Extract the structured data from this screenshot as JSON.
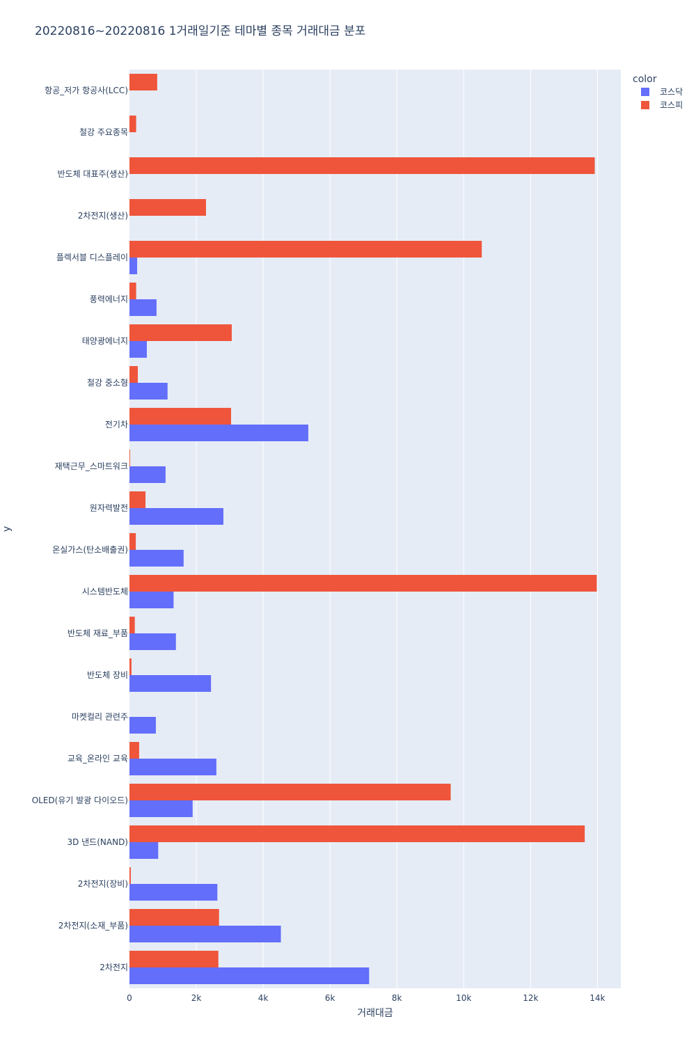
{
  "chart_data": {
    "type": "bar",
    "orientation": "horizontal",
    "barmode": "group",
    "title": "20220816~20220816 1거래일기준 테마별 종목 거래대금 분포",
    "xlabel": "거래대금",
    "ylabel": "y",
    "xlim": [
      0,
      14700
    ],
    "x_ticks": [
      0,
      2000,
      4000,
      6000,
      8000,
      10000,
      12000,
      14000
    ],
    "x_tick_labels": [
      "0",
      "2k",
      "4k",
      "6k",
      "8k",
      "10k",
      "12k",
      "14k"
    ],
    "grid": true,
    "legend": {
      "title": "color",
      "position": "top-right"
    },
    "categories": [
      "2차전지",
      "2차전지(소재_부품)",
      "2차전지(장비)",
      "3D 낸드(NAND)",
      "OLED(유기 발광 다이오드)",
      "교육_온라인 교육",
      "마켓컬리 관련주",
      "반도체 장비",
      "반도체 재료_부품",
      "시스템반도체",
      "온실가스(탄소배출권)",
      "원자력발전",
      "재택근무_스마트워크",
      "전기차",
      "철강 중소형",
      "태양광에너지",
      "풍력에너지",
      "플렉서블 디스플레이",
      "2차전지(생산)",
      "반도체 대표주(생산)",
      "철강 주요종목",
      "항공_저가 항공사(LCC)"
    ],
    "series": [
      {
        "name": "코스닥",
        "color": "#636efa",
        "values": [
          7170,
          4530,
          2630,
          860,
          1890,
          2600,
          790,
          2440,
          1390,
          1320,
          1620,
          2810,
          1080,
          5350,
          1140,
          520,
          810,
          230,
          0,
          0,
          0,
          0
        ]
      },
      {
        "name": "코스피",
        "color": "#ef553b",
        "values": [
          2660,
          2680,
          40,
          13620,
          9610,
          290,
          0,
          60,
          160,
          13980,
          190,
          480,
          20,
          3040,
          250,
          3060,
          200,
          10540,
          2290,
          13920,
          200,
          830
        ]
      }
    ]
  },
  "style": {
    "plot_background": "#e5ecf6",
    "grid_color": "#ffffff",
    "text_color": "#2a3f5f"
  }
}
